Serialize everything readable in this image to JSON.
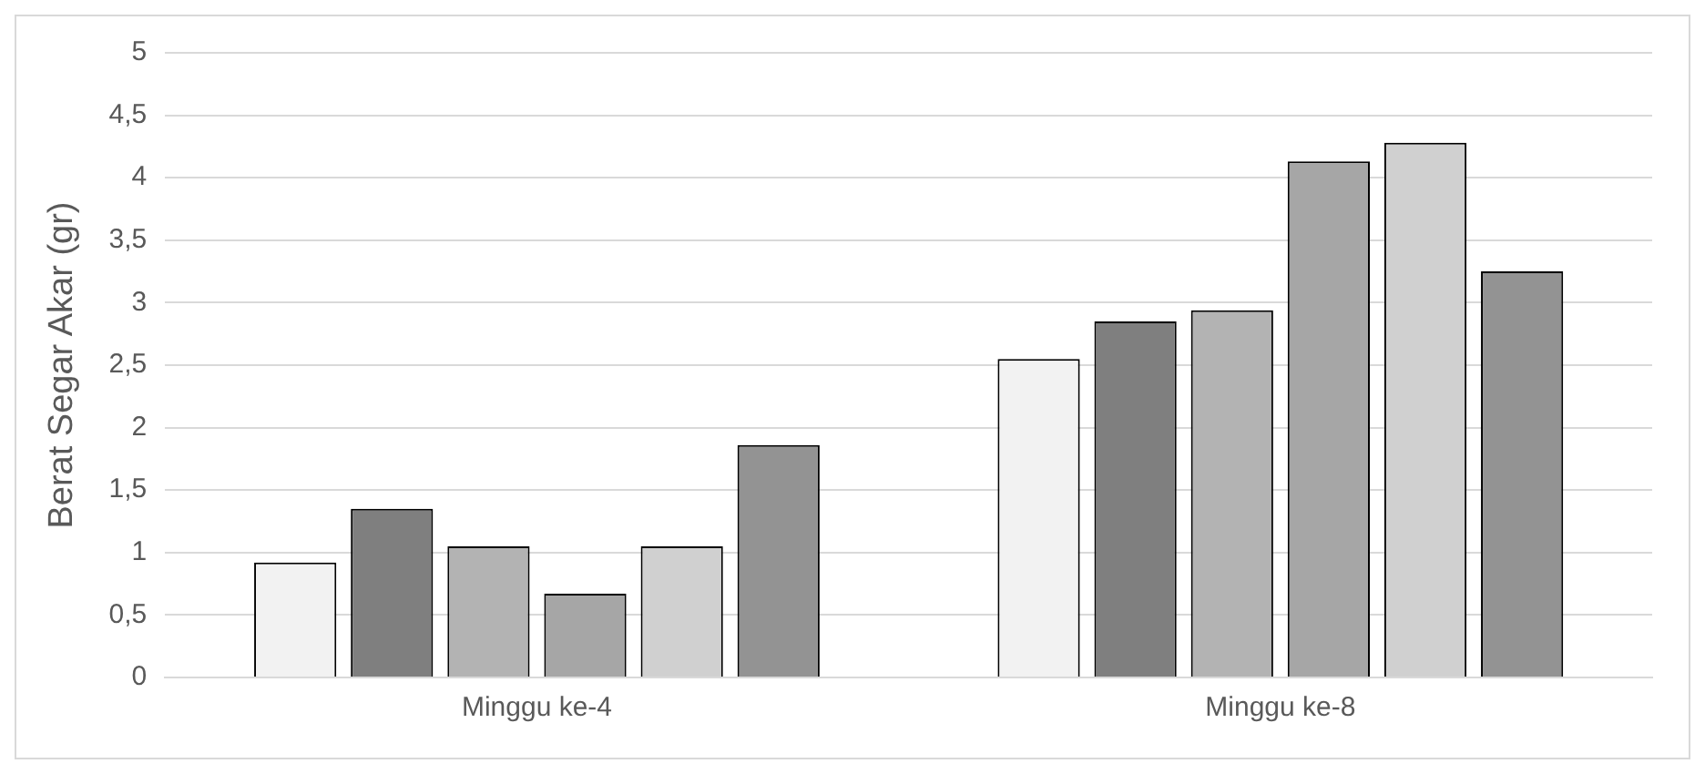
{
  "chart_data": {
    "type": "bar",
    "ylabel": "Berat Segar Akar (gr)",
    "categories": [
      "Minggu ke-4",
      "Minggu ke-8"
    ],
    "series": [
      {
        "color": "#f2f2f2",
        "values": [
          0.92,
          2.55
        ]
      },
      {
        "color": "#7f7f7f",
        "values": [
          1.35,
          2.85
        ]
      },
      {
        "color": "#b3b3b3",
        "values": [
          1.05,
          2.94
        ]
      },
      {
        "color": "#a6a6a6",
        "values": [
          0.67,
          4.13
        ]
      },
      {
        "color": "#d0d0d0",
        "values": [
          1.05,
          4.28
        ]
      },
      {
        "color": "#939393",
        "values": [
          1.86,
          3.25
        ]
      }
    ],
    "ylim": [
      0,
      5
    ],
    "yticks": [
      0,
      {
        "value": 0.5,
        "label": "0,5"
      },
      1,
      {
        "value": 1.5,
        "label": "1,5"
      },
      2,
      {
        "value": 2.5,
        "label": "2,5"
      },
      3,
      {
        "value": 3.5,
        "label": "3,5"
      },
      4,
      {
        "value": 4.5,
        "label": "4,5"
      },
      5
    ],
    "grid": "y",
    "legend": false
  }
}
